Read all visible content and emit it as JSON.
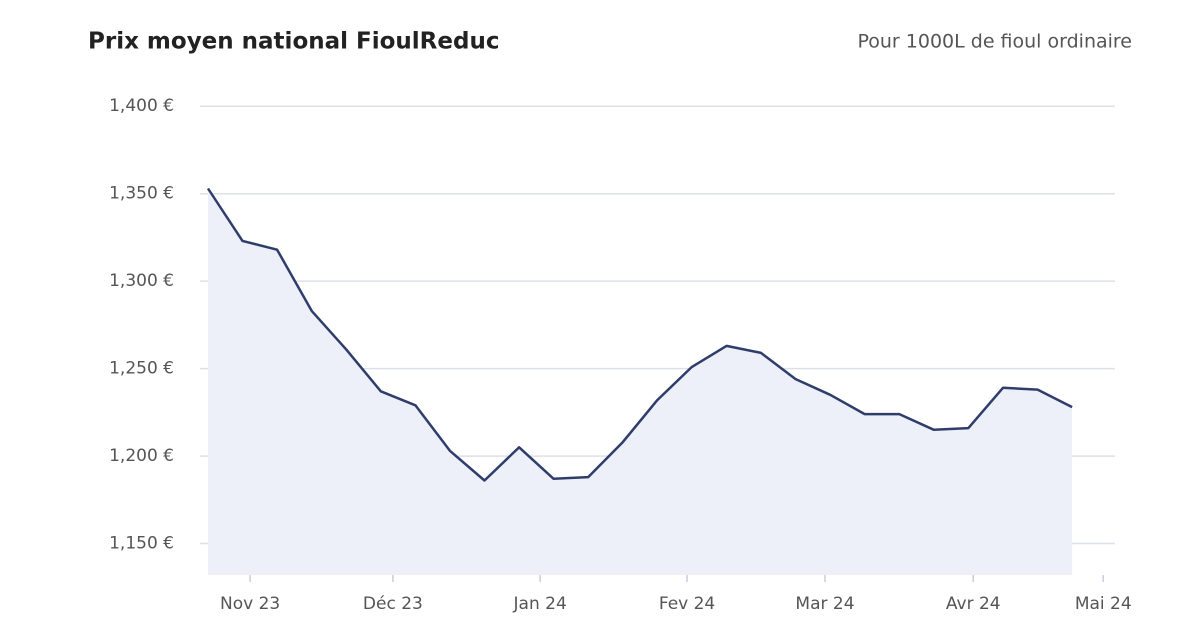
{
  "chart_data": {
    "type": "area-line",
    "title": "Prix moyen national FioulReduc",
    "subtitle": "Pour 1000L de fioul ordinaire",
    "x": [
      0,
      1,
      2,
      3,
      4,
      5,
      6,
      7,
      8,
      9,
      10,
      11,
      12,
      13,
      14,
      15,
      16,
      17,
      18,
      19,
      20,
      21,
      22,
      23,
      24,
      25
    ],
    "series": [
      {
        "name": "Prix moyen",
        "color": "#2f3d6b",
        "values": [
          1.353,
          1.323,
          1.318,
          1.283,
          1.261,
          1.237,
          1.229,
          1.203,
          1.186,
          1.205,
          1.187,
          1.188,
          1.208,
          1.232,
          1.251,
          1.263,
          1.259,
          1.244,
          1.235,
          1.224,
          1.224,
          1.215,
          1.216,
          1.239,
          1.238,
          1.228
        ]
      }
    ],
    "fill": "#eef0f9",
    "xlim": [
      -0.23,
      26.24
    ],
    "xticks": [
      {
        "value": 1.22,
        "label": "Nov 23"
      },
      {
        "value": 5.35,
        "label": "Déc 23"
      },
      {
        "value": 9.61,
        "label": "Jan 24"
      },
      {
        "value": 13.86,
        "label": "Fev 24"
      },
      {
        "value": 17.85,
        "label": "Mar 24"
      },
      {
        "value": 22.14,
        "label": "Avr 24"
      },
      {
        "value": 25.9,
        "label": "Mai 24"
      }
    ],
    "ylim": [
      1.132,
      1.403
    ],
    "yticks": [
      {
        "value": 1.15,
        "label": "1,150 €"
      },
      {
        "value": 1.2,
        "label": "1,200 €"
      },
      {
        "value": 1.25,
        "label": "1,250 €"
      },
      {
        "value": 1.3,
        "label": "1,300 €"
      },
      {
        "value": 1.35,
        "label": "1,350 €"
      },
      {
        "value": 1.4,
        "label": "1,400 €"
      }
    ],
    "grid": true
  }
}
